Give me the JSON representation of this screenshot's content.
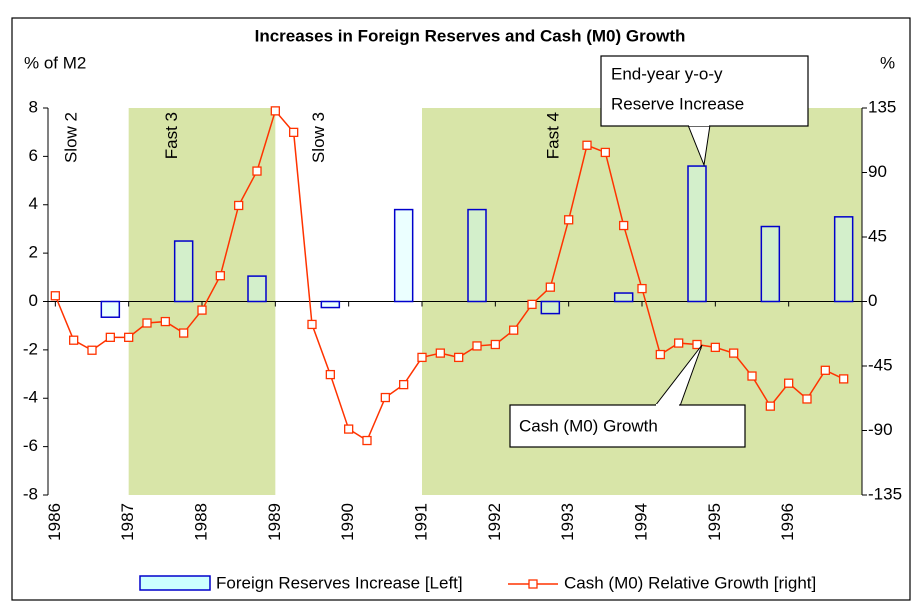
{
  "chart_data": {
    "type": "combo",
    "title": "Increases in Foreign Reserves and Cash (M0) Growth",
    "y_label": "% of M2",
    "y2_label": "%",
    "xlim": [
      1985.9,
      1997
    ],
    "xticks": [
      1986,
      1987,
      1988,
      1989,
      1990,
      1991,
      1992,
      1993,
      1994,
      1995,
      1996
    ],
    "ylim": [
      -8,
      8
    ],
    "yticks": [
      8,
      6,
      4,
      2,
      0,
      -2,
      -4,
      -6,
      -8
    ],
    "y2lim": [
      -135,
      135
    ],
    "y2ticks": [
      135,
      90,
      45,
      0,
      -45,
      -90,
      -135
    ],
    "phases": [
      {
        "label": "Slow 2",
        "start": 1985.9,
        "end": 1987,
        "shaded": false
      },
      {
        "label": "Fast 3",
        "start": 1987,
        "end": 1989,
        "shaded": true
      },
      {
        "label": "Slow 3",
        "start": 1989,
        "end": 1991,
        "shaded": false
      },
      {
        "label": "Fast 4",
        "start": 1991,
        "end": 1997,
        "shaded": true
      }
    ],
    "shade_color": "#d8e5a8",
    "series": [
      {
        "name": "Foreign Reserves Increase [Left]",
        "type": "bar",
        "color": "#0000cc",
        "fill": "#ccffff",
        "x": [
          1986.75,
          1987.75,
          1988.75,
          1989.75,
          1990.75,
          1991.75,
          1992.75,
          1993.75,
          1994.75,
          1995.75,
          1996.75
        ],
        "values": [
          -0.65,
          2.5,
          1.05,
          -0.25,
          3.8,
          3.8,
          -0.5,
          0.35,
          5.6,
          3.1,
          3.5
        ]
      },
      {
        "name": "Cash (M0) Relative Growth [right]",
        "type": "line",
        "axis": "y2",
        "color": "#ff3300",
        "x": [
          1986,
          1986.25,
          1986.5,
          1986.75,
          1987,
          1987.25,
          1987.5,
          1987.75,
          1988,
          1988.25,
          1988.5,
          1988.75,
          1989,
          1989.25,
          1989.5,
          1989.75,
          1990,
          1990.25,
          1990.5,
          1990.75,
          1991,
          1991.25,
          1991.5,
          1991.75,
          1992,
          1992.25,
          1992.5,
          1992.75,
          1993,
          1993.25,
          1993.5,
          1993.75,
          1994,
          1994.25,
          1994.5,
          1994.75,
          1995,
          1995.25,
          1995.5,
          1995.75,
          1996,
          1996.25,
          1996.5,
          1996.75
        ],
        "values": [
          4,
          -27,
          -34,
          -25,
          -25,
          -15,
          -14,
          -22,
          -6,
          18,
          67,
          91,
          133,
          118,
          -16,
          -51,
          -89,
          -97,
          -67,
          -58,
          -39,
          -36,
          -39,
          -31,
          -30,
          -20,
          -2,
          10,
          57,
          109,
          104,
          53,
          9,
          -37,
          -29,
          -30,
          -32,
          -36,
          -52,
          -73,
          -57,
          -68,
          -48,
          -54
        ]
      }
    ],
    "annotations": [
      {
        "text": [
          "End-year y-o-y",
          "Reserve Increase"
        ]
      },
      {
        "text": [
          "Cash (M0) Growth"
        ]
      }
    ]
  }
}
